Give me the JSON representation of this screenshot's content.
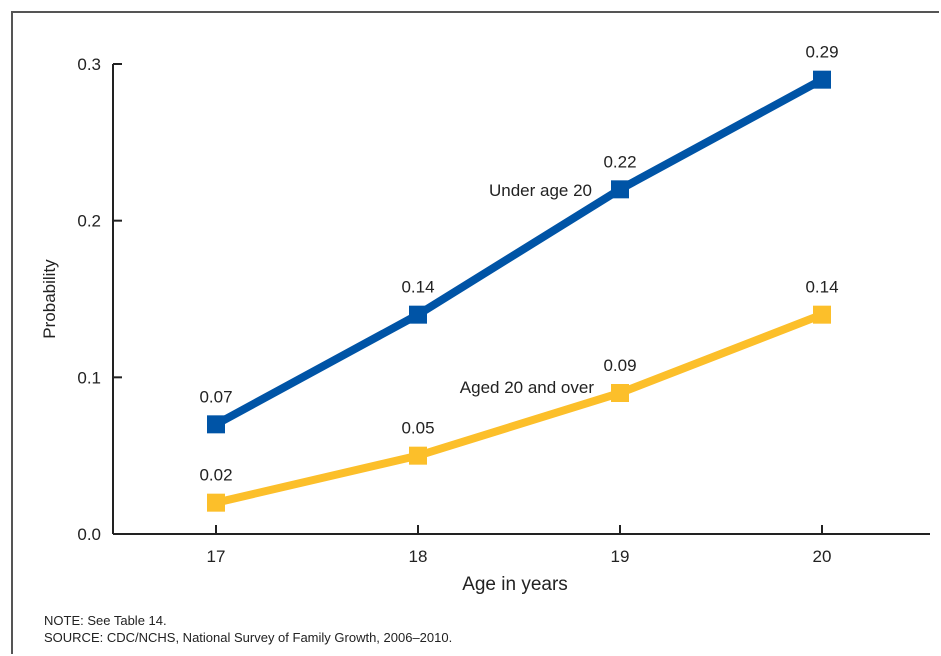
{
  "chart_data": {
    "type": "line",
    "x": [
      17,
      18,
      19,
      20
    ],
    "xlabel": "Age in years",
    "ylabel": "Probability",
    "ylim": [
      0.0,
      0.3
    ],
    "yticks": [
      "0.0",
      "0.1",
      "0.2",
      "0.3"
    ],
    "xticks": [
      "17",
      "18",
      "19",
      "20"
    ],
    "grid": false,
    "series": [
      {
        "name": "Under age 20",
        "values": [
          0.07,
          0.14,
          0.22,
          0.29
        ],
        "labels": [
          "0.07",
          "0.14",
          "0.22",
          "0.29"
        ],
        "color": "#0054a6"
      },
      {
        "name": "Aged 20 and over",
        "values": [
          0.02,
          0.05,
          0.09,
          0.14
        ],
        "labels": [
          "0.02",
          "0.05",
          "0.09",
          "0.14"
        ],
        "color": "#fcbf2a"
      }
    ]
  },
  "notes": {
    "note": "NOTE: See Table 14.",
    "source": "SOURCE: CDC/NCHS, National Survey of Family Growth, 2006–2010."
  }
}
